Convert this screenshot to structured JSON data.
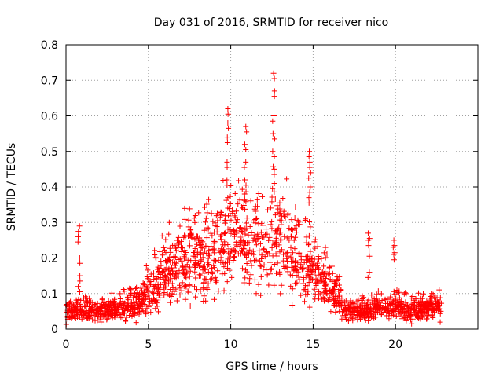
{
  "chart_data": {
    "type": "scatter",
    "title": "Day 031 of 2016, SRMTID for receiver nico",
    "xlabel": "GPS time / hours",
    "ylabel": "SRMTID / TECUs",
    "xlim": [
      0,
      25
    ],
    "ylim": [
      0,
      0.8
    ],
    "xticks": [
      0,
      5,
      10,
      15,
      20
    ],
    "yticks": [
      0,
      0.1,
      0.2,
      0.3,
      0.4,
      0.5,
      0.6,
      0.7,
      0.8
    ],
    "grid": true,
    "marker": "+",
    "color": "#ff0000",
    "series": [
      {
        "name": "SRMTID",
        "envelope_hours": [
          0,
          1,
          2,
          3,
          4,
          5,
          6,
          7,
          8,
          9,
          10,
          11,
          12,
          13,
          14,
          15,
          16,
          17,
          18,
          19,
          20,
          21,
          22,
          22.8
        ],
        "envelope_median": [
          0.05,
          0.05,
          0.05,
          0.055,
          0.065,
          0.1,
          0.15,
          0.18,
          0.2,
          0.2,
          0.27,
          0.25,
          0.23,
          0.25,
          0.18,
          0.16,
          0.12,
          0.05,
          0.05,
          0.06,
          0.06,
          0.05,
          0.06,
          0.06
        ],
        "spikes": [
          {
            "x": 0.8,
            "y": [
              0.29,
              0.26,
              0.2,
              0.15,
              0.12
            ]
          },
          {
            "x": 9.8,
            "y": [
              0.62,
              0.58,
              0.54,
              0.47,
              0.42
            ]
          },
          {
            "x": 10.9,
            "y": [
              0.57,
              0.52,
              0.47,
              0.42,
              0.38
            ]
          },
          {
            "x": 12.6,
            "y": [
              0.72,
              0.67,
              0.6,
              0.55,
              0.5,
              0.45,
              0.41
            ]
          },
          {
            "x": 14.8,
            "y": [
              0.5,
              0.47,
              0.44,
              0.4,
              0.37
            ]
          },
          {
            "x": 18.4,
            "y": [
              0.27,
              0.25,
              0.22,
              0.16
            ]
          },
          {
            "x": 19.9,
            "y": [
              0.25,
              0.23,
              0.21
            ]
          }
        ]
      }
    ]
  }
}
